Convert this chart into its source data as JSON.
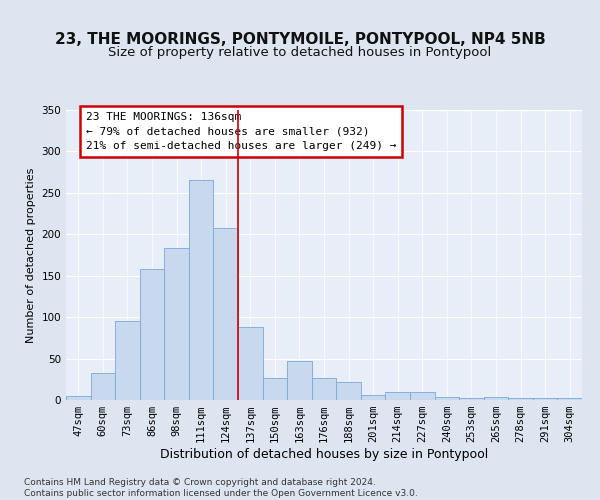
{
  "title": "23, THE MOORINGS, PONTYMOILE, PONTYPOOL, NP4 5NB",
  "subtitle": "Size of property relative to detached houses in Pontypool",
  "xlabel": "Distribution of detached houses by size in Pontypool",
  "ylabel": "Number of detached properties",
  "categories": [
    "47sqm",
    "60sqm",
    "73sqm",
    "86sqm",
    "98sqm",
    "111sqm",
    "124sqm",
    "137sqm",
    "150sqm",
    "163sqm",
    "176sqm",
    "188sqm",
    "201sqm",
    "214sqm",
    "227sqm",
    "240sqm",
    "253sqm",
    "265sqm",
    "278sqm",
    "291sqm",
    "304sqm"
  ],
  "values": [
    5,
    33,
    95,
    158,
    184,
    265,
    208,
    88,
    27,
    47,
    27,
    22,
    6,
    10,
    10,
    4,
    2,
    4,
    2,
    3,
    2
  ],
  "bar_color": "#c8d9ef",
  "bar_edge_color": "#7aa8d4",
  "vline_x": 7,
  "vline_color": "#cc0000",
  "annotation_text": "23 THE MOORINGS: 136sqm\n← 79% of detached houses are smaller (932)\n21% of semi-detached houses are larger (249) →",
  "annotation_box_color": "#ffffff",
  "annotation_box_edge_color": "#cc0000",
  "bg_color": "#dde6f0",
  "plot_bg_color": "#e8eef8",
  "footer": "Contains HM Land Registry data © Crown copyright and database right 2024.\nContains public sector information licensed under the Open Government Licence v3.0.",
  "ylim": [
    0,
    350
  ],
  "yticks": [
    0,
    50,
    100,
    150,
    200,
    250,
    300,
    350
  ],
  "title_fontsize": 11,
  "subtitle_fontsize": 9.5,
  "xlabel_fontsize": 9,
  "ylabel_fontsize": 8,
  "tick_fontsize": 7.5,
  "annotation_fontsize": 8,
  "footer_fontsize": 6.5
}
